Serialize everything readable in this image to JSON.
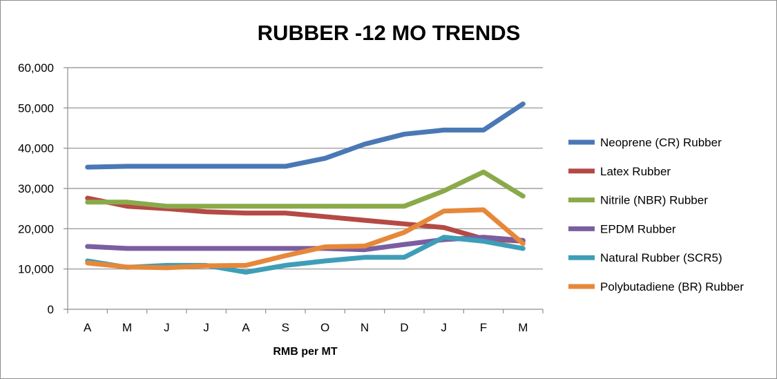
{
  "chart_data": {
    "type": "line",
    "title": "RUBBER -12 MO TRENDS",
    "xlabel": "RMB per MT",
    "ylabel": "",
    "categories": [
      "A",
      "M",
      "J",
      "J",
      "A",
      "S",
      "O",
      "N",
      "D",
      "J",
      "F",
      "M"
    ],
    "ylim": [
      0,
      60000
    ],
    "yticks": [
      0,
      10000,
      20000,
      30000,
      40000,
      50000,
      60000
    ],
    "ytick_labels": [
      "0",
      "10,000",
      "20,000",
      "30,000",
      "40,000",
      "50,000",
      "60,000"
    ],
    "grid": true,
    "legend_position": "right",
    "series": [
      {
        "name": "Neoprene (CR) Rubber",
        "color": "#4a78b5",
        "values": [
          35300,
          35500,
          35500,
          35500,
          35500,
          35500,
          37500,
          41000,
          43500,
          44500,
          44500,
          51000
        ]
      },
      {
        "name": "Latex Rubber",
        "color": "#b54a45",
        "values": [
          27600,
          25600,
          25000,
          24200,
          23900,
          23900,
          23000,
          22100,
          21200,
          20300,
          17500,
          16900
        ]
      },
      {
        "name": "Nitrile (NBR) Rubber",
        "color": "#8aaa4a",
        "values": [
          26600,
          26600,
          25600,
          25600,
          25600,
          25600,
          25600,
          25600,
          25600,
          29400,
          34100,
          28100
        ]
      },
      {
        "name": "EPDM Rubber",
        "color": "#7b5ea0",
        "values": [
          15600,
          15100,
          15100,
          15100,
          15100,
          15100,
          15100,
          14800,
          16100,
          17300,
          17900,
          17100
        ]
      },
      {
        "name": "Natural Rubber (SCR5)",
        "color": "#3e9eb8",
        "values": [
          12000,
          10400,
          10900,
          10900,
          9200,
          10900,
          12000,
          12900,
          12900,
          17900,
          16900,
          15100
        ]
      },
      {
        "name": "Polybutadiene (BR) Rubber",
        "color": "#e6883a",
        "values": [
          11500,
          10500,
          10300,
          10800,
          10900,
          13300,
          15500,
          15700,
          19100,
          24400,
          24700,
          16300
        ]
      }
    ]
  }
}
